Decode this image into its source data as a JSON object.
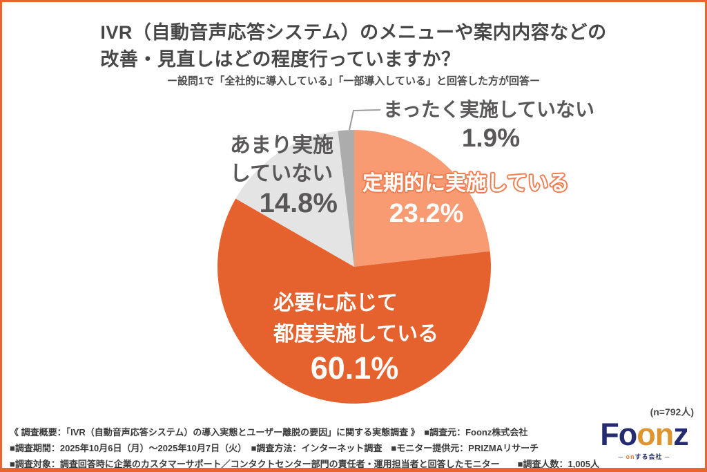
{
  "page": {
    "title_line1": "IVR（自動音声応答システム）のメニューや案内内容などの",
    "title_line2": "改善・見直しはどの程度行っていますか？",
    "subtitle": "ー設問1で「全社的に導入している」「一部導入している」と回答した方が回答ー",
    "sample_note": "(n=792人)"
  },
  "chart_data": {
    "type": "pie",
    "title": "IVR（自動音声応答システム）のメニューや案内内容などの改善・見直しはどの程度行っていますか？",
    "start_angle_deg": 0,
    "direction": "clockwise",
    "unit": "%",
    "slices": [
      {
        "name": "teikiteki",
        "label": "定期的に実施している",
        "value": 23.2,
        "color": "#F89B72"
      },
      {
        "name": "hitsuyou",
        "label": "必要に応じて都度実施している",
        "value": 60.1,
        "color": "#E5612D"
      },
      {
        "name": "amari",
        "label": "あまり実施していない",
        "value": 14.8,
        "color": "#E4E4E4"
      },
      {
        "name": "mattaku",
        "label": "まったく実施していない",
        "value": 1.9,
        "color": "#ACACAC"
      }
    ]
  },
  "labels": {
    "mattaku": {
      "text": "まったく実施していない",
      "pct": "1.9%"
    },
    "amari": {
      "line1": "あまり実施",
      "line2": "していない",
      "pct": "14.8%"
    },
    "teikiteki": {
      "text": "定期的に実施している",
      "pct": "23.2%"
    },
    "hitsuyou": {
      "line1": "必要に応じて",
      "line2": "都度実施している",
      "pct": "60.1%"
    }
  },
  "footer": {
    "lines": [
      "《 調査概要：「IVR（自動音声応答システム）の導入実態とユーザー離脱の要因」に関する実態調査 》　■調査元：Foonz株式会社",
      "■調査期間：2025年10月6日（月）～2025年10月7日（火）　■調査方法：インターネット調査　■モニター提供元：PRIZMAリサーチ",
      "■調査対象：調査回答時に企業のカスタマーサポート／コンタクトセンター部門の責任者・運用担当者と回答したモニター　　■調査人数：1,005人"
    ]
  },
  "logo": {
    "part_fo": "Fo",
    "part_on": "on",
    "part_z": "z",
    "tag_dash_left": "─ ",
    "tag_on": "on",
    "tag_rest": "する会社",
    "tag_dash_right": " ─"
  },
  "colors": {
    "frame_border": "#E8652F",
    "slice_light_orange": "#F89B72",
    "slice_dark_orange": "#E5612D",
    "slice_light_gray": "#E4E4E4",
    "slice_mid_gray": "#ACACAC",
    "label_gray": "#595757",
    "outline_orange": "#EF7E52"
  }
}
